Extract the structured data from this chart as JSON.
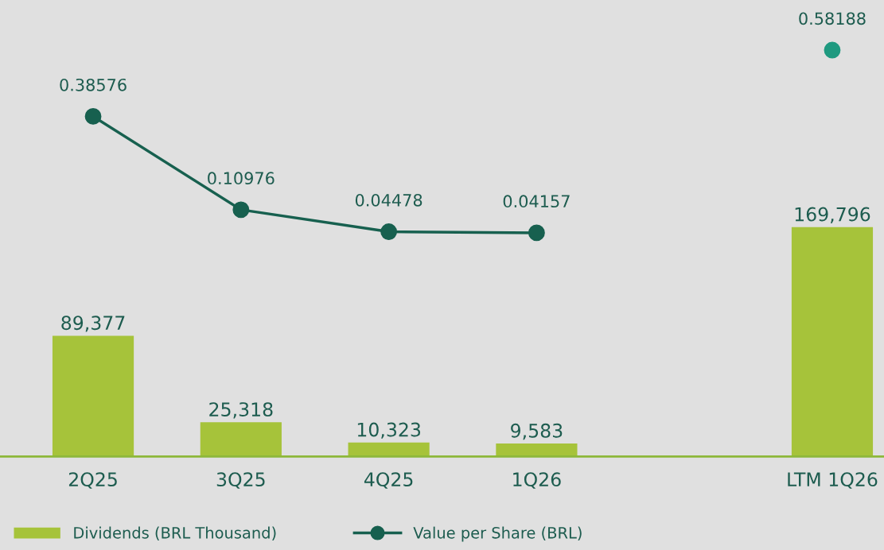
{
  "chart_data": {
    "type": "bar",
    "categories": [
      "2Q25",
      "3Q25",
      "4Q25",
      "1Q26",
      null,
      "LTM 1Q26"
    ],
    "series": [
      {
        "name": "Dividends (BRL Thousand)",
        "color": "#a6c33a",
        "values": [
          89377,
          25318,
          10323,
          9583,
          null,
          169796
        ],
        "value_labels": [
          "89,377",
          "25,318",
          "10,323",
          "9,583",
          null,
          "169,796"
        ]
      },
      {
        "name": "Value per Share (BRL)",
        "type": "line",
        "axis": "y2",
        "color": "#17604f",
        "values": [
          0.38576,
          0.10976,
          0.04478,
          0.04157,
          null,
          null
        ],
        "value_labels": [
          "0.38576",
          "0.10976",
          "0.04478",
          "0.04157",
          null,
          null
        ]
      },
      {
        "type": "scatter",
        "axis": "y2",
        "color": "#1f9a80",
        "values": [
          null,
          null,
          null,
          null,
          null,
          0.58188
        ],
        "value_labels": [
          null,
          null,
          null,
          null,
          null,
          "0.58188"
        ]
      }
    ],
    "ylim": [
      0,
      338000
    ],
    "y2lim": [
      -0.62,
      0.73
    ],
    "marker": "circle",
    "line_style": "solid",
    "grid": false,
    "legend": "bottom",
    "tick_labels": "x"
  }
}
